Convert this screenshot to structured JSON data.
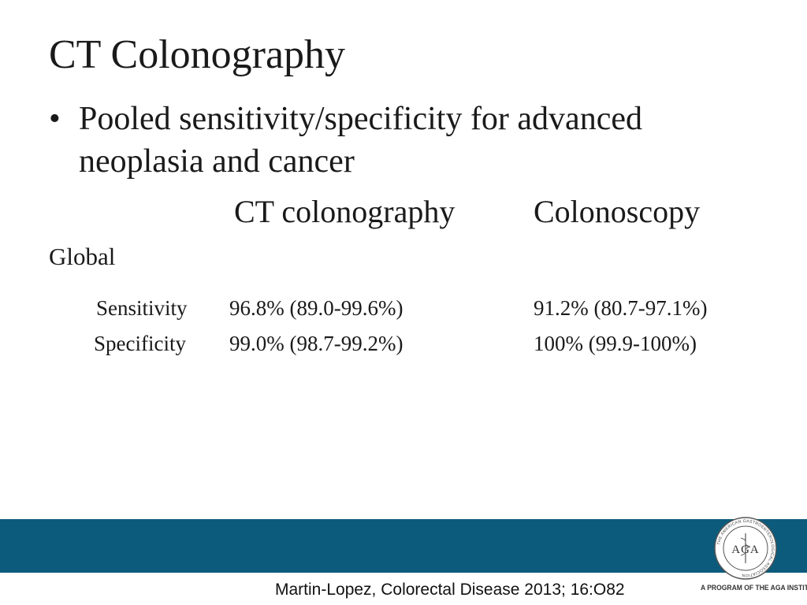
{
  "slide": {
    "title": "CT Colonography",
    "bullet": "Pooled sensitivity/specificity for advanced neoplasia and cancer"
  },
  "table": {
    "columns": [
      "CT colonography",
      "Colonoscopy"
    ],
    "section": "Global",
    "rows": [
      {
        "label": "Sensitivity",
        "values": [
          "96.8% (89.0-99.6%)",
          "91.2% (80.7-97.1%)"
        ]
      },
      {
        "label": "Specificity",
        "values": [
          "99.0% (98.7-99.2%)",
          "100% (99.9-100%)"
        ]
      }
    ]
  },
  "footer": {
    "citation": "Martin-Lopez, Colorectal Disease 2013; 16:O82",
    "band_color": "#0d5b7c",
    "logo": {
      "initials": "AGA",
      "ring_text": "THE AMERICAN GASTROENTEROLOGICAL ASSOCIATION",
      "tagline": "A PROGRAM OF THE AGA INSTITUTE"
    }
  }
}
